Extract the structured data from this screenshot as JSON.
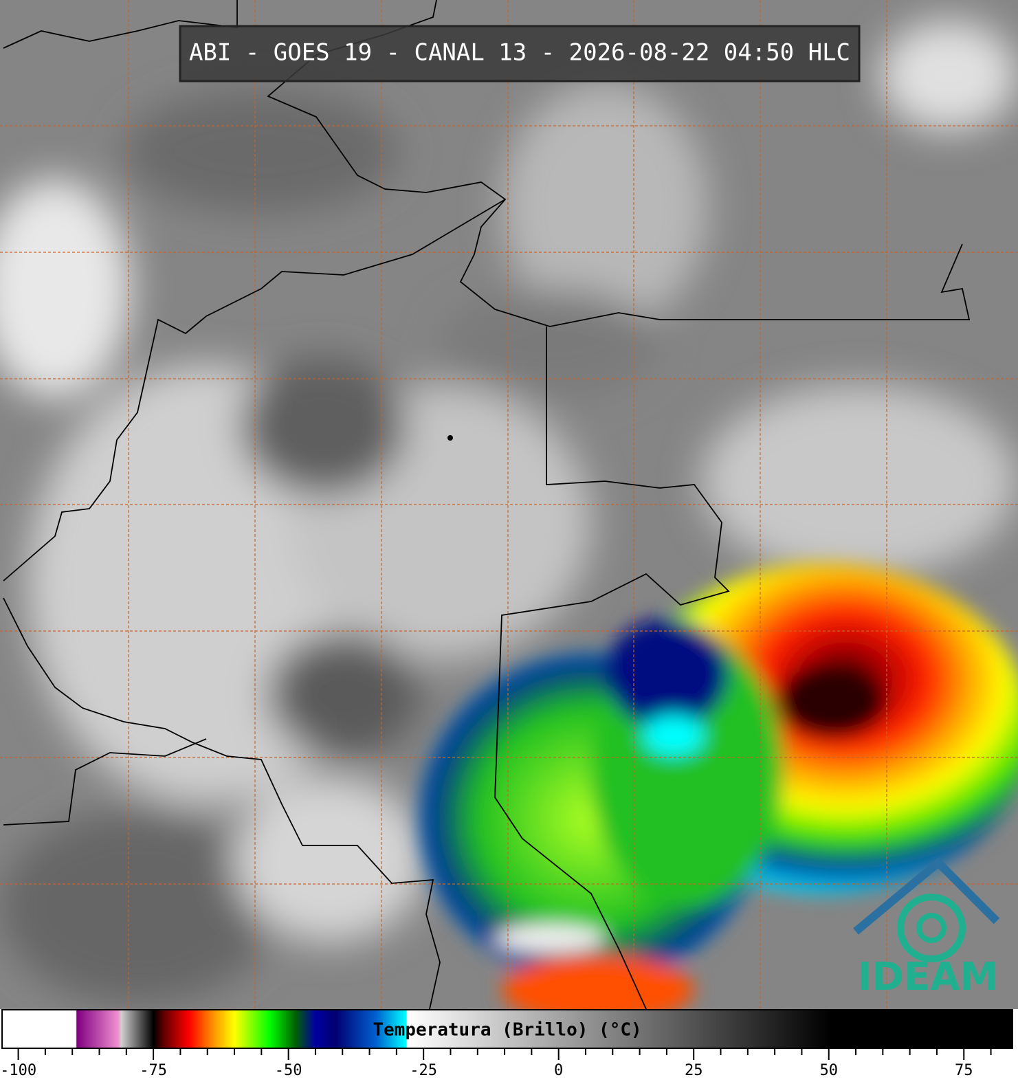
{
  "header": {
    "title": "ABI - GOES 19 - CANAL 13 - 2026-08-22 04:50 HLC"
  },
  "logo": {
    "text": "IDEAM"
  },
  "colorbar": {
    "label": "Temperatura (Brillo) (°C)",
    "lim": [
      -103,
      84
    ],
    "ticks": [
      {
        "value": -100,
        "label": "-100"
      },
      {
        "value": -75,
        "label": "-75"
      },
      {
        "value": -50,
        "label": "-50"
      },
      {
        "value": -25,
        "label": "-25"
      },
      0,
      25,
      50,
      75
    ],
    "minor_ticks": [
      -95,
      -90,
      -85,
      -80,
      -70,
      -65,
      -60,
      -55,
      -45,
      -40,
      -35,
      -30,
      -20,
      -15,
      -10,
      -5,
      5,
      10,
      15,
      20,
      30,
      35,
      40,
      45,
      55,
      60,
      65,
      70,
      80
    ]
  }
}
